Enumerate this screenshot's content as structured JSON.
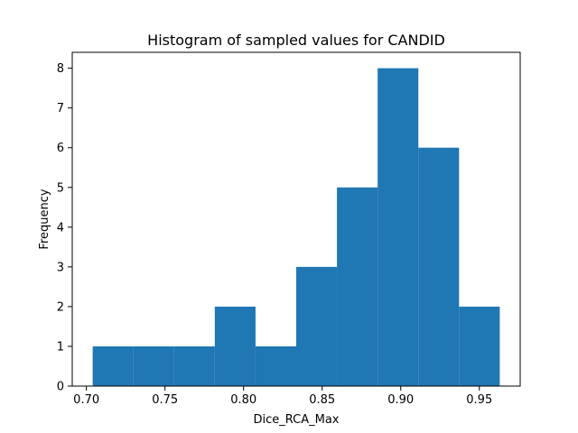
{
  "chart_data": {
    "type": "histogram",
    "title": "Histogram of sampled values for CANDID",
    "xlabel": "Dice_RCA_Max",
    "ylabel": "Frequency",
    "xlim": [
      0.691,
      0.976
    ],
    "ylim": [
      0,
      8.4
    ],
    "bin_edges": [
      0.704,
      0.7299,
      0.7558,
      0.7817,
      0.8076,
      0.8335,
      0.8594,
      0.8853,
      0.9112,
      0.9371,
      0.963
    ],
    "counts": [
      1,
      1,
      1,
      2,
      1,
      3,
      5,
      8,
      6,
      2
    ],
    "x_ticks": [
      0.7,
      0.75,
      0.8,
      0.85,
      0.9,
      0.95
    ],
    "x_tick_labels": [
      "0.70",
      "0.75",
      "0.80",
      "0.85",
      "0.90",
      "0.95"
    ],
    "y_ticks": [
      0,
      1,
      2,
      3,
      4,
      5,
      6,
      7,
      8
    ],
    "y_tick_labels": [
      "0",
      "1",
      "2",
      "3",
      "4",
      "5",
      "6",
      "7",
      "8"
    ],
    "bar_color": "#1f77b4",
    "grid": false,
    "legend": "none"
  }
}
